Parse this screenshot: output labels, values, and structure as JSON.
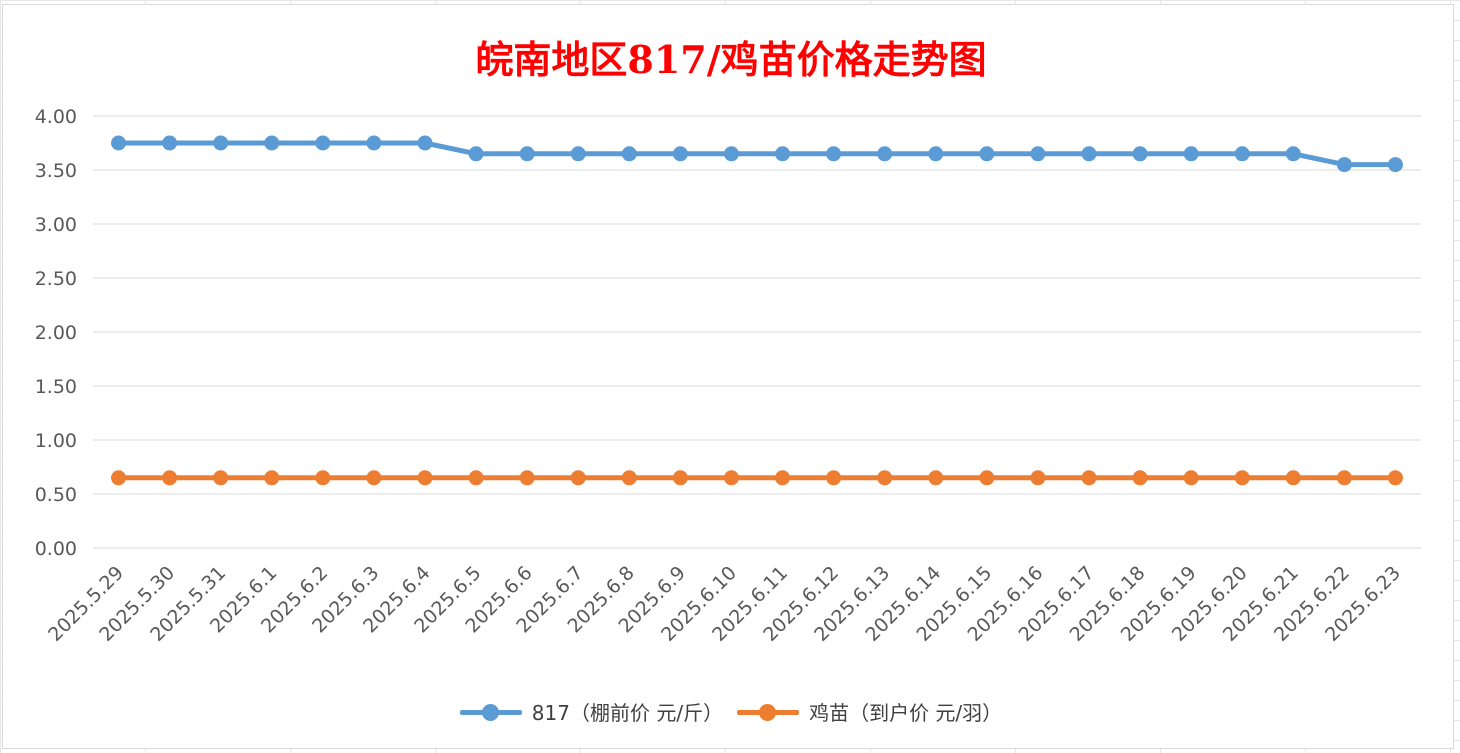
{
  "chart_data": {
    "type": "line",
    "title": "皖南地区817/鸡苗价格走势图",
    "categories": [
      "2025.5.29",
      "2025.5.30",
      "2025.5.31",
      "2025.6.1",
      "2025.6.2",
      "2025.6.3",
      "2025.6.4",
      "2025.6.5",
      "2025.6.6",
      "2025.6.7",
      "2025.6.8",
      "2025.6.9",
      "2025.6.10",
      "2025.6.11",
      "2025.6.12",
      "2025.6.13",
      "2025.6.14",
      "2025.6.15",
      "2025.6.16",
      "2025.6.17",
      "2025.6.18",
      "2025.6.19",
      "2025.6.20",
      "2025.6.21",
      "2025.6.22",
      "2025.6.23"
    ],
    "series": [
      {
        "name": "817（棚前价 元/斤）",
        "color": "#5b9bd5",
        "values": [
          3.75,
          3.75,
          3.75,
          3.75,
          3.75,
          3.75,
          3.75,
          3.65,
          3.65,
          3.65,
          3.65,
          3.65,
          3.65,
          3.65,
          3.65,
          3.65,
          3.65,
          3.65,
          3.65,
          3.65,
          3.65,
          3.65,
          3.65,
          3.65,
          3.55,
          3.55
        ]
      },
      {
        "name": "鸡苗（到户价 元/羽）",
        "color": "#ed7d31",
        "values": [
          0.65,
          0.65,
          0.65,
          0.65,
          0.65,
          0.65,
          0.65,
          0.65,
          0.65,
          0.65,
          0.65,
          0.65,
          0.65,
          0.65,
          0.65,
          0.65,
          0.65,
          0.65,
          0.65,
          0.65,
          0.65,
          0.65,
          0.65,
          0.65,
          0.65,
          0.65
        ]
      }
    ],
    "yticks": [
      "0.00",
      "0.50",
      "1.00",
      "1.50",
      "2.00",
      "2.50",
      "3.00",
      "3.50",
      "4.00"
    ],
    "ylim": [
      0,
      4
    ],
    "grid": true,
    "legend_position": "bottom",
    "title_color": "#ff0000"
  }
}
